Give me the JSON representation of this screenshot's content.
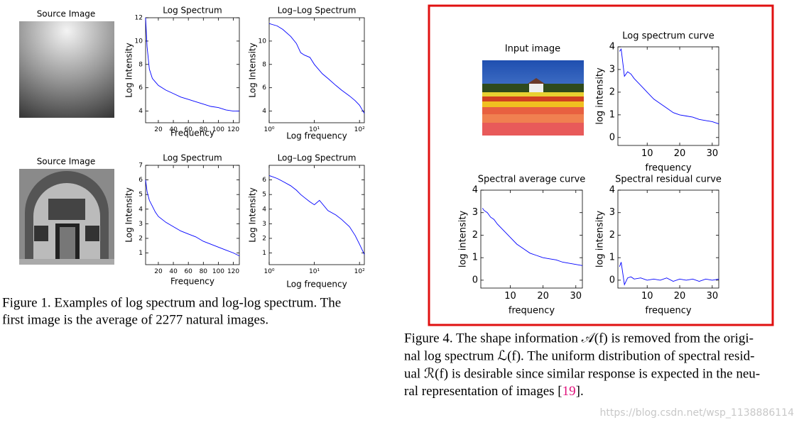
{
  "figure1": {
    "rows": [
      {
        "source_label": "Source Image",
        "plots": [
          {
            "type": "line",
            "title": "Log Spectrum",
            "xlabel": "Frequency",
            "ylabel": "Log Intensity",
            "color": "#0000ff",
            "x": [
              3,
              5,
              8,
              12,
              16,
              20,
              30,
              40,
              50,
              60,
              70,
              80,
              90,
              100,
              110,
              120,
              128
            ],
            "values": [
              12,
              9.5,
              7.6,
              6.8,
              6.5,
              6.2,
              5.8,
              5.5,
              5.2,
              5.0,
              4.8,
              4.6,
              4.4,
              4.3,
              4.1,
              4.0,
              4.0
            ],
            "xlim": [
              3,
              128
            ],
            "ylim": [
              3,
              12
            ],
            "xticks": [
              20,
              40,
              60,
              80,
              100,
              120
            ],
            "yticks": [
              4,
              6,
              8,
              10,
              12
            ]
          },
          {
            "type": "line",
            "title": "Log–Log Spectrum",
            "xlabel": "Log frequency",
            "ylabel": "Log Intensity",
            "color": "#0000ff",
            "xscale": "log",
            "x": [
              1,
              1.5,
              2,
              3,
              4,
              5,
              6,
              8,
              10,
              15,
              20,
              30,
              40,
              60,
              80,
              100,
              128
            ],
            "values": [
              11.5,
              11.3,
              11,
              10.4,
              9.8,
              9.0,
              8.8,
              8.6,
              8.0,
              7.2,
              6.8,
              6.2,
              5.8,
              5.3,
              4.9,
              4.5,
              3.8
            ],
            "xlim": [
              1,
              128
            ],
            "ylim": [
              3,
              12
            ],
            "xticks": [
              {
                "value": 1,
                "label": "10⁰"
              },
              {
                "value": 10,
                "label": "10¹"
              },
              {
                "value": 100,
                "label": "10²"
              }
            ],
            "yticks": [
              4,
              6,
              8,
              10
            ]
          }
        ]
      },
      {
        "source_label": "Source Image",
        "plots": [
          {
            "type": "line",
            "title": "Log Spectrum",
            "xlabel": "Frequency",
            "ylabel": "Log Intensity",
            "color": "#0000ff",
            "x": [
              3,
              5,
              8,
              12,
              16,
              20,
              30,
              40,
              50,
              60,
              70,
              80,
              90,
              100,
              110,
              120,
              128
            ],
            "values": [
              6.0,
              5.2,
              4.6,
              4.2,
              3.8,
              3.5,
              3.1,
              2.8,
              2.5,
              2.3,
              2.1,
              1.8,
              1.6,
              1.4,
              1.2,
              1.0,
              0.8
            ],
            "xlim": [
              3,
              128
            ],
            "ylim": [
              0.2,
              7
            ],
            "xticks": [
              20,
              40,
              60,
              80,
              100,
              120
            ],
            "yticks": [
              1,
              2,
              3,
              4,
              5,
              6,
              7
            ]
          },
          {
            "type": "line",
            "title": "Log–Log Spectrum",
            "xlabel": "Log frequency",
            "ylabel": "Log Intensity",
            "color": "#0000ff",
            "xscale": "log",
            "x": [
              1,
              1.5,
              2,
              3,
              4,
              5,
              6,
              8,
              10,
              13,
              20,
              30,
              40,
              60,
              80,
              100,
              128
            ],
            "values": [
              6.3,
              6.1,
              5.9,
              5.6,
              5.3,
              5.0,
              4.8,
              4.5,
              4.3,
              4.6,
              3.9,
              3.6,
              3.3,
              2.8,
              2.2,
              1.6,
              0.9
            ],
            "xlim": [
              1,
              128
            ],
            "ylim": [
              0.2,
              7
            ],
            "xticks": [
              {
                "value": 1,
                "label": "10⁰"
              },
              {
                "value": 10,
                "label": "10¹"
              },
              {
                "value": 100,
                "label": "10²"
              }
            ],
            "yticks": [
              1,
              2,
              3,
              4,
              5,
              6
            ]
          }
        ]
      }
    ],
    "caption": [
      "Figure 1. Examples of log spectrum and log-log spectrum.  The",
      "first image is the average of 2277 natural images."
    ]
  },
  "figure4": {
    "input_label": "Input image",
    "plots": [
      {
        "type": "line",
        "title": "Log spectrum curve",
        "xlabel": "frequency",
        "ylabel": "log intensity",
        "color": "#0000ff",
        "x": [
          1.5,
          2,
          3,
          4,
          5,
          6,
          8,
          10,
          12,
          14,
          16,
          18,
          20,
          22,
          24,
          26,
          28,
          30,
          32
        ],
        "values": [
          3.8,
          3.9,
          2.7,
          2.9,
          2.8,
          2.6,
          2.3,
          2.0,
          1.7,
          1.5,
          1.3,
          1.1,
          1.0,
          0.95,
          0.9,
          0.8,
          0.75,
          0.7,
          0.6
        ],
        "xlim": [
          1,
          32
        ],
        "ylim": [
          -0.35,
          4
        ],
        "xticks": [
          10,
          20,
          30
        ],
        "yticks": [
          0,
          1,
          2,
          3,
          4
        ]
      },
      {
        "type": "line",
        "title": "Spectral average curve",
        "xlabel": "frequency",
        "ylabel": "log intensity",
        "color": "#0000ff",
        "x": [
          1.5,
          2,
          3,
          4,
          5,
          6,
          8,
          10,
          12,
          14,
          16,
          18,
          20,
          22,
          24,
          26,
          28,
          30,
          32
        ],
        "values": [
          3.2,
          3.1,
          3.0,
          2.8,
          2.7,
          2.5,
          2.2,
          1.9,
          1.6,
          1.4,
          1.2,
          1.1,
          1.0,
          0.95,
          0.9,
          0.8,
          0.75,
          0.7,
          0.65
        ],
        "xlim": [
          1,
          32
        ],
        "ylim": [
          -0.35,
          4
        ],
        "xticks": [
          10,
          20,
          30
        ],
        "yticks": [
          0,
          1,
          2,
          3,
          4
        ]
      },
      {
        "type": "line",
        "title": "Spectral residual curve",
        "xlabel": "frequency",
        "ylabel": "log intensity",
        "color": "#0000ff",
        "x": [
          1.5,
          2,
          3,
          4,
          5,
          6,
          8,
          10,
          12,
          14,
          16,
          18,
          20,
          22,
          24,
          26,
          28,
          30,
          32
        ],
        "values": [
          0.6,
          0.8,
          -0.2,
          0.1,
          0.15,
          0.05,
          0.1,
          0.0,
          0.05,
          0.0,
          0.1,
          -0.05,
          0.05,
          0.0,
          0.05,
          -0.05,
          0.05,
          0.0,
          0.05
        ],
        "xlim": [
          1,
          32
        ],
        "ylim": [
          -0.35,
          4
        ],
        "xticks": [
          10,
          20,
          30
        ],
        "yticks": [
          0,
          1,
          2,
          3,
          4
        ]
      }
    ],
    "caption": {
      "lines": [
        "Figure 4. The shape information 𝒜(f) is removed from the origi-",
        "nal log spectrum ℒ(f). The uniform distribution of spectral resid-",
        "ual ℛ(f) is desirable since similar response is expected in the neu-"
      ],
      "last_line": "ral representation of images [",
      "citation": "19",
      "end": "]."
    }
  },
  "watermark": "https://blog.csdn.net/wsp_1138886114"
}
